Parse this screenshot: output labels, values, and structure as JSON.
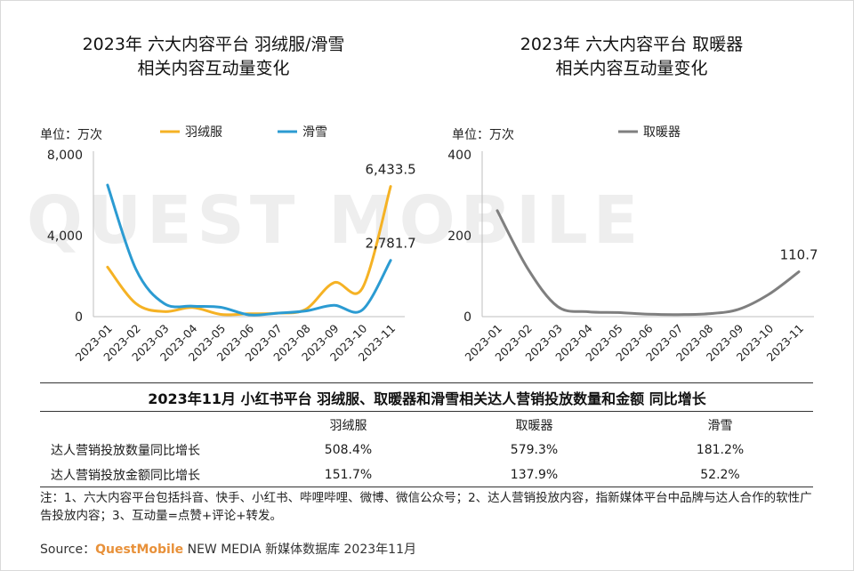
{
  "chart_data": [
    {
      "type": "line",
      "title": "2023年 六大内容平台 羽绒服/滑雪\n相关内容互动量变化",
      "unit_label": "单位：万次",
      "categories": [
        "2023-01",
        "2023-02",
        "2023-03",
        "2023-04",
        "2023-05",
        "2023-06",
        "2023-07",
        "2023-08",
        "2023-09",
        "2023-10",
        "2023-11"
      ],
      "y_ticks": [
        "8,000",
        "4,000",
        "0"
      ],
      "ylim": [
        0,
        8000
      ],
      "legend_position": "top",
      "series": [
        {
          "name": "羽绒服",
          "color": "#f5b224",
          "values": [
            2450,
            650,
            250,
            450,
            110,
            140,
            170,
            360,
            1680,
            1400,
            6433.5
          ]
        },
        {
          "name": "滑雪",
          "color": "#2b9bd2",
          "values": [
            6500,
            2350,
            650,
            520,
            460,
            90,
            170,
            280,
            560,
            330,
            2781.7
          ]
        }
      ],
      "data_labels": [
        {
          "series": "羽绒服",
          "index": 10,
          "text": "6,433.5"
        },
        {
          "series": "滑雪",
          "index": 10,
          "text": "2,781.7"
        }
      ]
    },
    {
      "type": "line",
      "title": "2023年 六大内容平台 取暖器\n相关内容互动量变化",
      "unit_label": "单位：万次",
      "categories": [
        "2023-01",
        "2023-02",
        "2023-03",
        "2023-04",
        "2023-05",
        "2023-06",
        "2023-07",
        "2023-08",
        "2023-09",
        "2023-10",
        "2023-11"
      ],
      "y_ticks": [
        "400",
        "200",
        "0"
      ],
      "ylim": [
        0,
        400
      ],
      "legend_position": "top",
      "series": [
        {
          "name": "取暖器",
          "color": "#7f7f7f",
          "values": [
            262,
            120,
            25,
            12,
            10,
            6,
            5,
            7,
            18,
            55,
            110.7
          ]
        }
      ],
      "data_labels": [
        {
          "series": "取暖器",
          "index": 10,
          "text": "110.7"
        }
      ]
    }
  ],
  "watermark": "QUEST MOBILE",
  "table": {
    "title": "2023年11月 小红书平台 羽绒服、取暖器和滑雪相关达人营销投放数量和金额 同比增长",
    "headers": [
      "",
      "羽绒服",
      "取暖器",
      "滑雪"
    ],
    "rows": [
      {
        "label": "达人营销投放数量同比增长",
        "values": [
          "508.4%",
          "579.3%",
          "181.2%"
        ]
      },
      {
        "label": "达人营销投放金额同比增长",
        "values": [
          "151.7%",
          "137.9%",
          "52.2%"
        ]
      }
    ]
  },
  "note": "注：1、六大内容平台包括抖音、快手、小红书、哔哩哔哩、微博、微信公众号；2、达人营销投放内容，指新媒体平台中品牌与达人合作的软性广告投放内容；3、互动量=点赞+评论+转发。",
  "source": {
    "prefix": "Source：",
    "brand": "QuestMobile",
    "suffix": " NEW MEDIA 新媒体数据库 2023年11月"
  }
}
